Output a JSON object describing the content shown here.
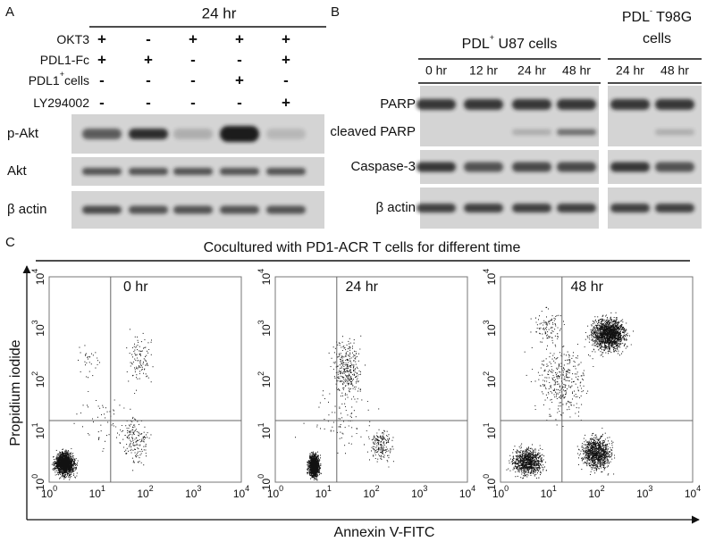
{
  "panel_a": {
    "label": "A",
    "time": "24 hr",
    "rows": [
      {
        "name": "OKT3",
        "signs": [
          "+",
          "-",
          "+",
          "+",
          "+"
        ]
      },
      {
        "name": "PDL1-Fc",
        "signs": [
          "+",
          "+",
          "-",
          "-",
          "+"
        ]
      },
      {
        "name": "PDL1",
        "sup": "+",
        "suffix": "cells",
        "signs": [
          "-",
          "-",
          "-",
          "+",
          "-"
        ]
      },
      {
        "name": "LY294002",
        "signs": [
          "-",
          "-",
          "-",
          "-",
          "+"
        ]
      }
    ],
    "blots": [
      "p-Akt",
      "Akt",
      "β actin"
    ]
  },
  "panel_b": {
    "label": "B",
    "group1": {
      "name": "PDL",
      "sup": "+",
      "suffix": "U87 cells"
    },
    "group2": {
      "name": "PDL",
      "sup": "-",
      "line1": "T98G",
      "line2": "cells"
    },
    "times1": [
      "0 hr",
      "12 hr",
      "24 hr",
      "48 hr"
    ],
    "times2": [
      "24 hr",
      "48 hr"
    ],
    "blots": [
      "PARP",
      "cleaved PARP",
      "Caspase-3",
      "β actin"
    ]
  },
  "panel_c": {
    "label": "C",
    "title": "Cocultured with PD1-ACR T cells for different time",
    "plots": [
      "0 hr",
      "24 hr",
      "48 hr"
    ],
    "y_label": "Propidium iodide",
    "x_label": "Annexin V-FITC",
    "ticks": [
      {
        "base": "10",
        "exp": "0"
      },
      {
        "base": "10",
        "exp": "1"
      },
      {
        "base": "10",
        "exp": "2"
      },
      {
        "base": "10",
        "exp": "3"
      },
      {
        "base": "10",
        "exp": "4"
      }
    ]
  }
}
